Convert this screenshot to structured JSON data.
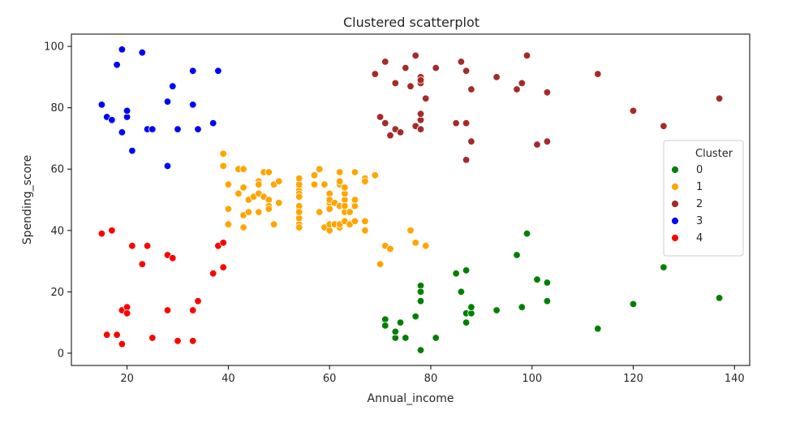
{
  "chart_data": {
    "type": "scatter",
    "title": "Clustered scatterplot",
    "xlabel": "Annual_income",
    "ylabel": "Spending_score",
    "xlim": [
      9,
      143
    ],
    "ylim": [
      -4,
      104
    ],
    "xticks": [
      20,
      40,
      60,
      80,
      100,
      120,
      140
    ],
    "yticks": [
      0,
      20,
      40,
      60,
      80,
      100
    ],
    "grid": false,
    "legend": {
      "title": "Cluster",
      "placement": "center-right"
    },
    "series": [
      {
        "name": "0",
        "color": "#008000",
        "points": [
          [
            71,
            11
          ],
          [
            71,
            9
          ],
          [
            73,
            5
          ],
          [
            73,
            7
          ],
          [
            74,
            10
          ],
          [
            75,
            5
          ],
          [
            77,
            12
          ],
          [
            78,
            22
          ],
          [
            78,
            20
          ],
          [
            78,
            17
          ],
          [
            78,
            1
          ],
          [
            81,
            5
          ],
          [
            85,
            26
          ],
          [
            86,
            20
          ],
          [
            87,
            27
          ],
          [
            87,
            10
          ],
          [
            87,
            13
          ],
          [
            88,
            13
          ],
          [
            88,
            15
          ],
          [
            93,
            14
          ],
          [
            97,
            32
          ],
          [
            98,
            15
          ],
          [
            99,
            39
          ],
          [
            101,
            24
          ],
          [
            103,
            23
          ],
          [
            103,
            17
          ],
          [
            113,
            8
          ],
          [
            120,
            16
          ],
          [
            126,
            28
          ],
          [
            137,
            18
          ]
        ]
      },
      {
        "name": "1",
        "color": "#FFA500",
        "points": [
          [
            39,
            65
          ],
          [
            39,
            61
          ],
          [
            40,
            55
          ],
          [
            40,
            47
          ],
          [
            40,
            42
          ],
          [
            42,
            52
          ],
          [
            42,
            60
          ],
          [
            43,
            45
          ],
          [
            43,
            60
          ],
          [
            43,
            54
          ],
          [
            43,
            41
          ],
          [
            44,
            50
          ],
          [
            44,
            46
          ],
          [
            45,
            51
          ],
          [
            46,
            46
          ],
          [
            46,
            56
          ],
          [
            46,
            55
          ],
          [
            46,
            52
          ],
          [
            47,
            59
          ],
          [
            47,
            51
          ],
          [
            48,
            59
          ],
          [
            48,
            50
          ],
          [
            48,
            48
          ],
          [
            48,
            47
          ],
          [
            49,
            55
          ],
          [
            49,
            42
          ],
          [
            50,
            49
          ],
          [
            50,
            56
          ],
          [
            54,
            47
          ],
          [
            54,
            54
          ],
          [
            54,
            53
          ],
          [
            54,
            48
          ],
          [
            54,
            52
          ],
          [
            54,
            42
          ],
          [
            54,
            51
          ],
          [
            54,
            55
          ],
          [
            54,
            41
          ],
          [
            54,
            44
          ],
          [
            54,
            57
          ],
          [
            54,
            46
          ],
          [
            57,
            58
          ],
          [
            57,
            55
          ],
          [
            58,
            60
          ],
          [
            58,
            46
          ],
          [
            59,
            55
          ],
          [
            59,
            41
          ],
          [
            60,
            49
          ],
          [
            60,
            40
          ],
          [
            60,
            42
          ],
          [
            60,
            52
          ],
          [
            60,
            47
          ],
          [
            60,
            50
          ],
          [
            61,
            42
          ],
          [
            61,
            49
          ],
          [
            62,
            41
          ],
          [
            62,
            48
          ],
          [
            62,
            59
          ],
          [
            62,
            55
          ],
          [
            62,
            56
          ],
          [
            62,
            42
          ],
          [
            63,
            50
          ],
          [
            63,
            46
          ],
          [
            63,
            43
          ],
          [
            63,
            48
          ],
          [
            63,
            52
          ],
          [
            63,
            54
          ],
          [
            64,
            42
          ],
          [
            64,
            46
          ],
          [
            65,
            48
          ],
          [
            65,
            50
          ],
          [
            65,
            43
          ],
          [
            65,
            59
          ],
          [
            67,
            43
          ],
          [
            67,
            57
          ],
          [
            67,
            56
          ],
          [
            67,
            40
          ],
          [
            69,
            58
          ],
          [
            70,
            29
          ],
          [
            71,
            35
          ],
          [
            72,
            34
          ],
          [
            76,
            40
          ],
          [
            77,
            36
          ],
          [
            79,
            35
          ]
        ]
      },
      {
        "name": "2",
        "color": "#A52A2A",
        "points": [
          [
            69,
            91
          ],
          [
            70,
            77
          ],
          [
            71,
            95
          ],
          [
            71,
            75
          ],
          [
            72,
            71
          ],
          [
            73,
            88
          ],
          [
            73,
            73
          ],
          [
            74,
            72
          ],
          [
            75,
            93
          ],
          [
            76,
            87
          ],
          [
            77,
            97
          ],
          [
            77,
            74
          ],
          [
            78,
            90
          ],
          [
            78,
            88
          ],
          [
            78,
            89
          ],
          [
            78,
            73
          ],
          [
            78,
            76
          ],
          [
            78,
            78
          ],
          [
            79,
            83
          ],
          [
            81,
            93
          ],
          [
            85,
            75
          ],
          [
            86,
            95
          ],
          [
            87,
            63
          ],
          [
            87,
            75
          ],
          [
            87,
            92
          ],
          [
            88,
            86
          ],
          [
            88,
            69
          ],
          [
            93,
            90
          ],
          [
            97,
            86
          ],
          [
            98,
            88
          ],
          [
            99,
            97
          ],
          [
            101,
            68
          ],
          [
            103,
            85
          ],
          [
            103,
            69
          ],
          [
            113,
            91
          ],
          [
            120,
            79
          ],
          [
            126,
            74
          ],
          [
            137,
            83
          ]
        ]
      },
      {
        "name": "3",
        "color": "#0000FF",
        "points": [
          [
            15,
            81
          ],
          [
            16,
            77
          ],
          [
            17,
            76
          ],
          [
            18,
            94
          ],
          [
            19,
            72
          ],
          [
            19,
            99
          ],
          [
            20,
            77
          ],
          [
            20,
            79
          ],
          [
            21,
            66
          ],
          [
            23,
            98
          ],
          [
            24,
            73
          ],
          [
            25,
            73
          ],
          [
            28,
            82
          ],
          [
            28,
            61
          ],
          [
            29,
            87
          ],
          [
            30,
            73
          ],
          [
            33,
            92
          ],
          [
            33,
            81
          ],
          [
            34,
            73
          ],
          [
            37,
            75
          ],
          [
            38,
            92
          ]
        ]
      },
      {
        "name": "4",
        "color": "#FF0000",
        "points": [
          [
            15,
            39
          ],
          [
            16,
            6
          ],
          [
            17,
            40
          ],
          [
            18,
            6
          ],
          [
            19,
            3
          ],
          [
            19,
            14
          ],
          [
            20,
            15
          ],
          [
            20,
            13
          ],
          [
            21,
            35
          ],
          [
            23,
            29
          ],
          [
            24,
            35
          ],
          [
            25,
            5
          ],
          [
            28,
            14
          ],
          [
            28,
            32
          ],
          [
            29,
            31
          ],
          [
            30,
            4
          ],
          [
            33,
            4
          ],
          [
            33,
            14
          ],
          [
            34,
            17
          ],
          [
            37,
            26
          ],
          [
            38,
            35
          ],
          [
            39,
            36
          ],
          [
            39,
            28
          ]
        ]
      }
    ]
  }
}
